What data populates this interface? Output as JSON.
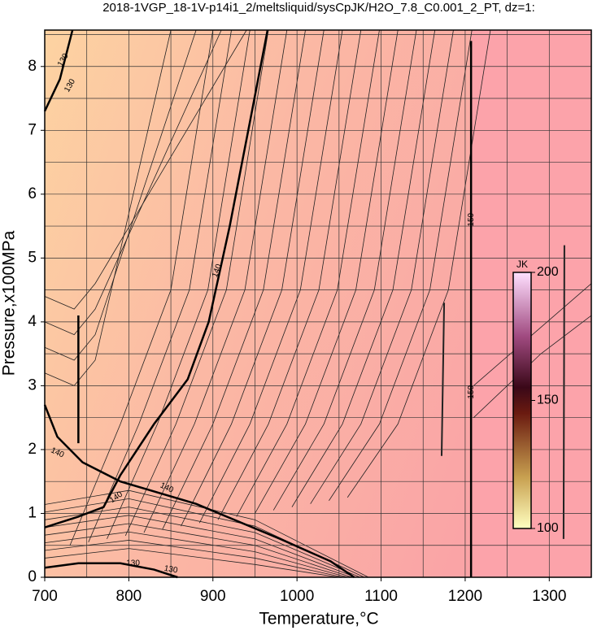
{
  "chart_data": {
    "type": "contour",
    "title": "2018-1VGP_18-1V-p14i1_2/meltsliquid/sysCpJK/H2O_7.8_C0.001_2_PT, dz=1:",
    "x_label": "Temperature,°C",
    "y_label": "Pressure,x100MPa",
    "xlim": [
      700,
      1350
    ],
    "ylim": [
      0,
      8.57
    ],
    "xticks": [
      700,
      800,
      900,
      1000,
      1100,
      1200,
      1300
    ],
    "yticks": [
      0,
      1,
      2,
      3,
      4,
      5,
      6,
      7,
      8
    ],
    "xgrid": [
      750,
      800,
      850,
      900,
      950,
      1000,
      1050,
      1100,
      1150,
      1200,
      1250,
      1300
    ],
    "ygrid": [
      0.5,
      1,
      1.5,
      2,
      2.5,
      3,
      3.5,
      4,
      4.5,
      5,
      5.5,
      6,
      6.5,
      7,
      7.5,
      8,
      8.5
    ],
    "grid": true,
    "contour_levels": [
      130,
      140,
      150
    ],
    "colorbar": {
      "label": "JK",
      "lim": [
        100,
        200
      ],
      "ticks": [
        100,
        150,
        200
      ]
    }
  }
}
